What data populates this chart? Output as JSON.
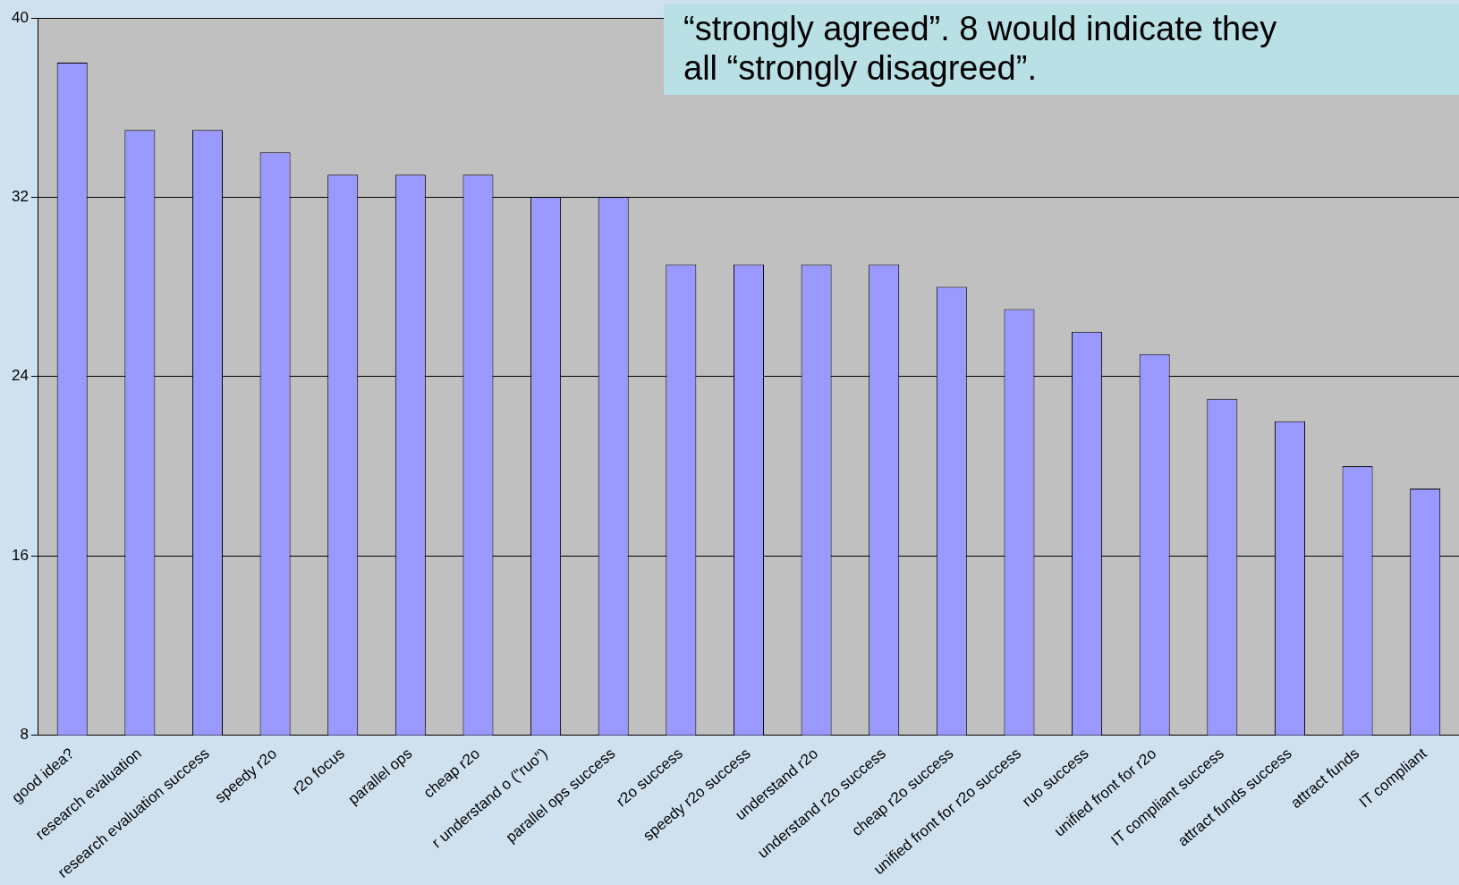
{
  "chart_data": {
    "type": "bar",
    "categories": [
      "good idea?",
      "research evaluation",
      "research evaluation success",
      "speedy r2o",
      "r2o focus",
      "parallel ops",
      "cheap r2o",
      "r understand o (\"ruo\")",
      "parallel ops success",
      "r2o success",
      "speedy r2o success",
      "understand r2o",
      "understand r2o success",
      "cheap r2o success",
      "unified front for r2o success",
      "ruo success",
      "unified front for r2o",
      "IT compliant success",
      "attract funds success",
      "attract funds",
      "IT compliant"
    ],
    "values": [
      38,
      35,
      35,
      34,
      33,
      33,
      33,
      32,
      32,
      29,
      29,
      29,
      29,
      28,
      27,
      26,
      25,
      23,
      22,
      20,
      19
    ],
    "color": "#9999ff",
    "ylim": [
      8,
      40
    ],
    "yticks": [
      8,
      16,
      24,
      32,
      40
    ],
    "grid": "y",
    "legend": false,
    "annotations": [
      "“strongly agreed”. 8 would indicate they\nall “strongly disagreed”."
    ]
  }
}
